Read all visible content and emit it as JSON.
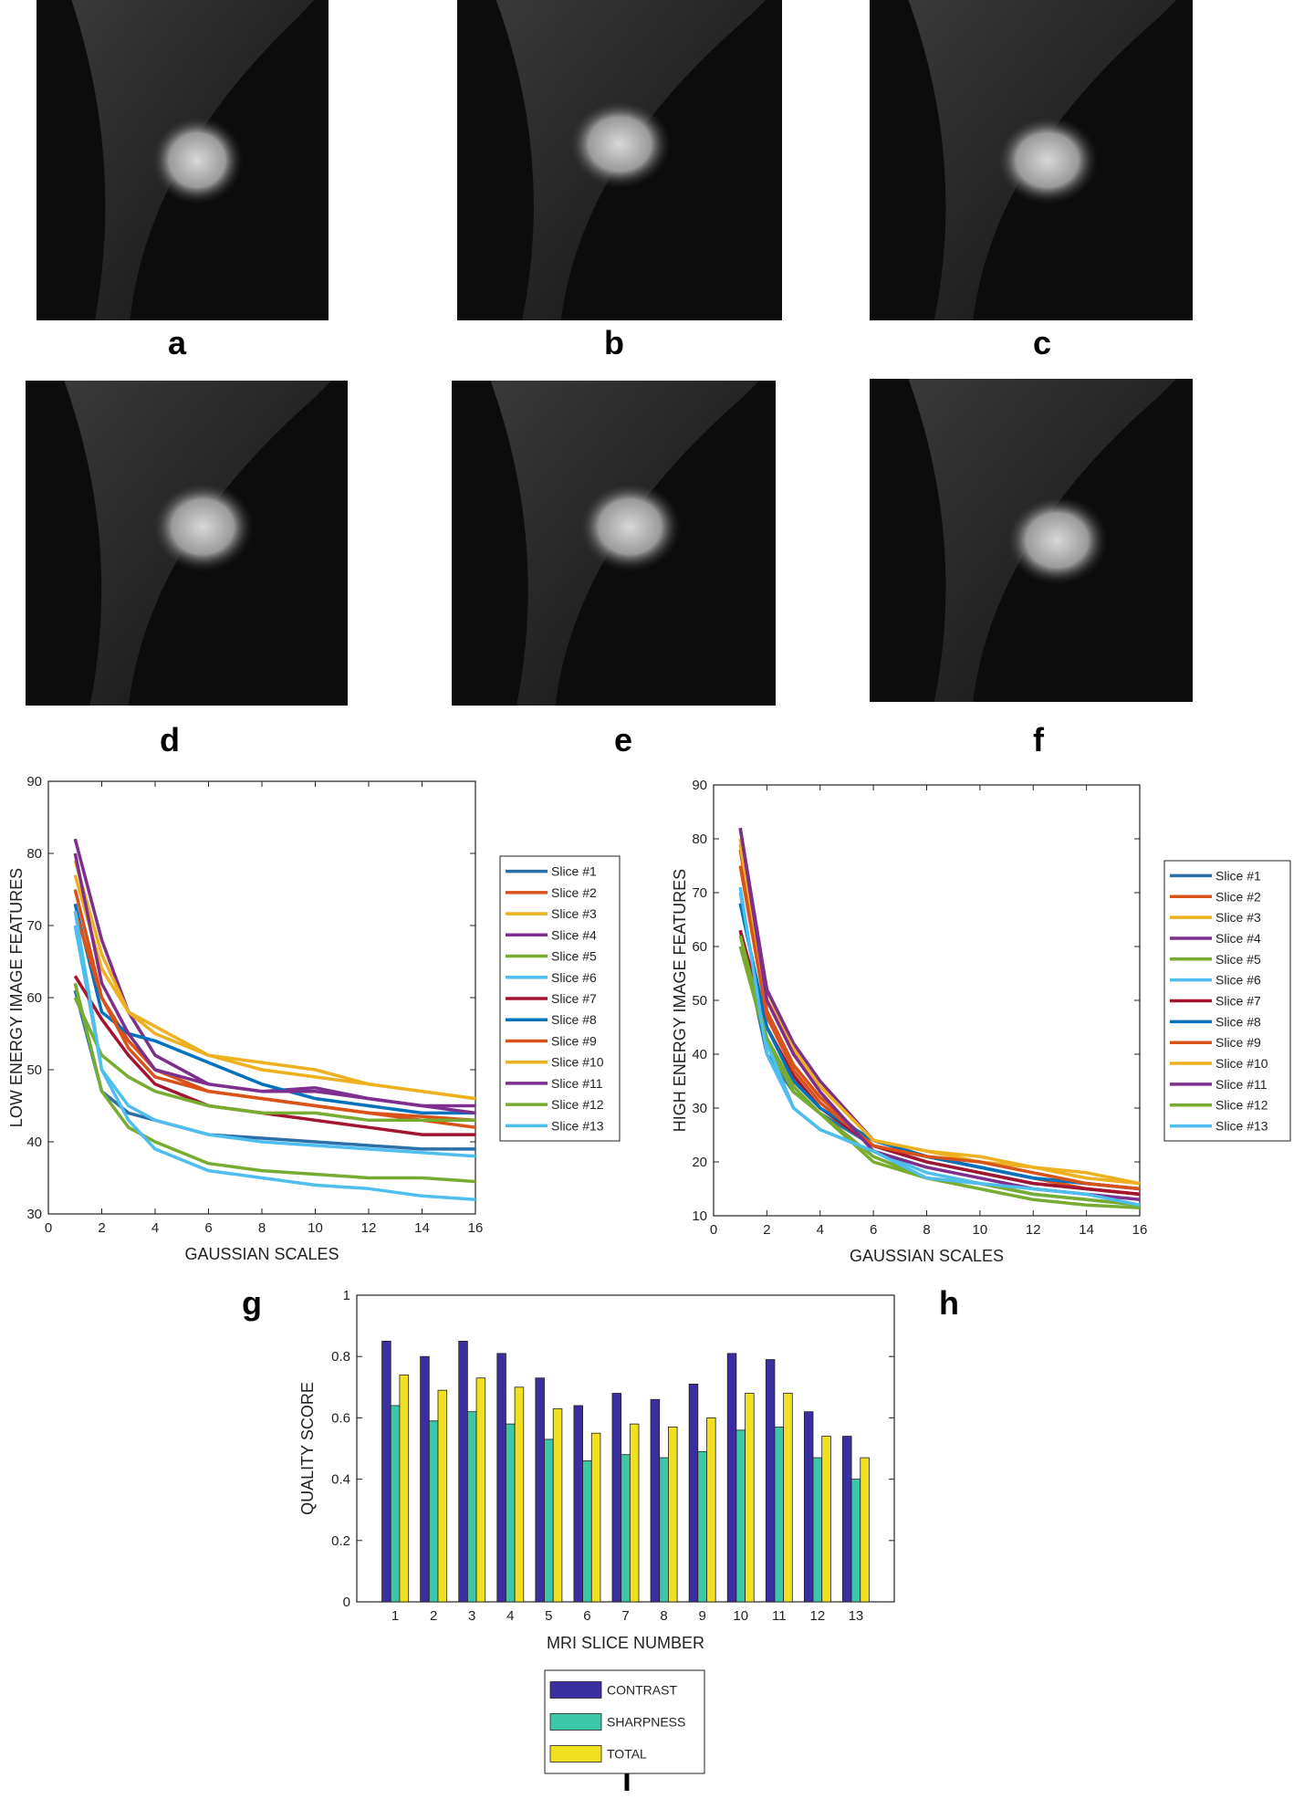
{
  "panels": [
    {
      "label": "a"
    },
    {
      "label": "b"
    },
    {
      "label": "c"
    },
    {
      "label": "d"
    },
    {
      "label": "e"
    },
    {
      "label": "f"
    }
  ],
  "chart_data": [
    {
      "type": "line",
      "label": "g",
      "xlabel": "GAUSSIAN SCALES",
      "ylabel": "LOW ENERGY IMAGE FEATURES",
      "x": [
        1,
        2,
        3,
        4,
        6,
        8,
        10,
        12,
        14,
        16
      ],
      "xlim": [
        0,
        16
      ],
      "xticks": [
        0,
        2,
        4,
        6,
        8,
        10,
        12,
        14,
        16
      ],
      "ylim": [
        30,
        90
      ],
      "yticks": [
        30,
        40,
        50,
        60,
        70,
        80,
        90
      ],
      "series": [
        {
          "name": "Slice #1",
          "color": "#2a6fa8",
          "values": [
            61,
            47,
            44,
            43,
            41,
            40.5,
            40,
            39.5,
            39,
            39
          ]
        },
        {
          "name": "Slice #2",
          "color": "#d95319",
          "values": [
            75,
            60,
            54,
            50,
            47,
            46,
            45,
            44,
            43.5,
            43
          ]
        },
        {
          "name": "Slice #3",
          "color": "#edb120",
          "values": [
            77,
            64,
            58,
            56,
            52,
            50,
            49,
            48,
            47,
            46
          ]
        },
        {
          "name": "Slice #4",
          "color": "#7e2f8e",
          "values": [
            82,
            68,
            58,
            52,
            48,
            47,
            47.5,
            46,
            45,
            45
          ]
        },
        {
          "name": "Slice #5",
          "color": "#77ac30",
          "values": [
            62,
            47,
            42,
            40,
            37,
            36,
            35.5,
            35,
            35,
            34.5
          ]
        },
        {
          "name": "Slice #6",
          "color": "#4dbeee",
          "values": [
            70,
            50,
            43,
            39,
            36,
            35,
            34,
            33.5,
            32.5,
            32
          ]
        },
        {
          "name": "Slice #7",
          "color": "#a2142f",
          "values": [
            63,
            57,
            52,
            48,
            45,
            44,
            43,
            42,
            41,
            41
          ]
        },
        {
          "name": "Slice #8",
          "color": "#0072bd",
          "values": [
            73,
            58,
            55,
            54,
            51,
            48,
            46,
            45,
            44,
            44
          ]
        },
        {
          "name": "Slice #9",
          "color": "#d95319",
          "values": [
            72,
            60,
            53,
            49,
            47,
            46,
            45,
            44,
            43,
            42
          ]
        },
        {
          "name": "Slice #10",
          "color": "#edb120",
          "values": [
            79,
            66,
            58,
            55,
            52,
            51,
            50,
            48,
            47,
            46
          ]
        },
        {
          "name": "Slice #11",
          "color": "#7e2f8e",
          "values": [
            80,
            62,
            55,
            50,
            48,
            47,
            47,
            46,
            45,
            44
          ]
        },
        {
          "name": "Slice #12",
          "color": "#77ac30",
          "values": [
            60,
            52,
            49,
            47,
            45,
            44,
            44,
            43,
            43,
            43
          ]
        },
        {
          "name": "Slice #13",
          "color": "#4dbeee",
          "values": [
            72,
            50,
            45,
            43,
            41,
            40,
            39.5,
            39,
            38.5,
            38
          ]
        }
      ]
    },
    {
      "type": "line",
      "label": "h",
      "xlabel": "GAUSSIAN SCALES",
      "ylabel": "HIGH ENERGY IMAGE FEATURES",
      "x": [
        1,
        2,
        3,
        4,
        6,
        8,
        10,
        12,
        14,
        16
      ],
      "xlim": [
        0,
        16
      ],
      "xticks": [
        0,
        2,
        4,
        6,
        8,
        10,
        12,
        14,
        16
      ],
      "ylim": [
        10,
        90
      ],
      "yticks": [
        10,
        20,
        30,
        40,
        50,
        60,
        70,
        80,
        90
      ],
      "series": [
        {
          "name": "Slice #1",
          "color": "#2a6fa8",
          "values": [
            63,
            40,
            33,
            29,
            23,
            20,
            18,
            16,
            15,
            14
          ]
        },
        {
          "name": "Slice #2",
          "color": "#d95319",
          "values": [
            78,
            48,
            38,
            32,
            23,
            21,
            19,
            17,
            15,
            14
          ]
        },
        {
          "name": "Slice #3",
          "color": "#edb120",
          "values": [
            80,
            52,
            40,
            34,
            24,
            22,
            20,
            19,
            17,
            16
          ]
        },
        {
          "name": "Slice #4",
          "color": "#7e2f8e",
          "values": [
            82,
            52,
            42,
            35,
            24,
            21,
            19,
            17,
            16,
            15
          ]
        },
        {
          "name": "Slice #5",
          "color": "#77ac30",
          "values": [
            60,
            42,
            33,
            29,
            20,
            17,
            15,
            13,
            12,
            11.5
          ]
        },
        {
          "name": "Slice #6",
          "color": "#4dbeee",
          "values": [
            70,
            42,
            30,
            26,
            22,
            18,
            16,
            14,
            13,
            12
          ]
        },
        {
          "name": "Slice #7",
          "color": "#a2142f",
          "values": [
            63,
            45,
            36,
            30,
            23,
            20,
            18,
            16,
            15,
            14
          ]
        },
        {
          "name": "Slice #8",
          "color": "#0072bd",
          "values": [
            68,
            45,
            35,
            30,
            24,
            21,
            19,
            17,
            16,
            15
          ]
        },
        {
          "name": "Slice #9",
          "color": "#d95319",
          "values": [
            75,
            47,
            37,
            31,
            23,
            21,
            20,
            18,
            16,
            15
          ]
        },
        {
          "name": "Slice #10",
          "color": "#edb120",
          "values": [
            79,
            50,
            41,
            34,
            24,
            22,
            21,
            19,
            18,
            16
          ]
        },
        {
          "name": "Slice #11",
          "color": "#7e2f8e",
          "values": [
            82,
            50,
            40,
            33,
            22,
            19,
            17,
            15,
            14,
            13
          ]
        },
        {
          "name": "Slice #12",
          "color": "#77ac30",
          "values": [
            62,
            43,
            34,
            29,
            21,
            17,
            16,
            14,
            13,
            12
          ]
        },
        {
          "name": "Slice #13",
          "color": "#4dbeee",
          "values": [
            71,
            40,
            30,
            26,
            22,
            17,
            16,
            15,
            14,
            12
          ]
        }
      ]
    },
    {
      "type": "bar",
      "label": "i",
      "xlabel": "MRI SLICE NUMBER",
      "ylabel": "QUALITY SCORE",
      "categories": [
        "1",
        "2",
        "3",
        "4",
        "5",
        "6",
        "7",
        "8",
        "9",
        "10",
        "11",
        "12",
        "13"
      ],
      "ylim": [
        0,
        1
      ],
      "yticks": [
        0,
        0.2,
        0.4,
        0.6,
        0.8,
        1
      ],
      "series": [
        {
          "name": "CONTRAST",
          "color": "#3a2ea0",
          "values": [
            0.85,
            0.8,
            0.85,
            0.81,
            0.73,
            0.64,
            0.68,
            0.66,
            0.71,
            0.81,
            0.79,
            0.62,
            0.54
          ]
        },
        {
          "name": "SHARPNESS",
          "color": "#3cc8a8",
          "values": [
            0.64,
            0.59,
            0.62,
            0.58,
            0.53,
            0.46,
            0.48,
            0.47,
            0.49,
            0.56,
            0.57,
            0.47,
            0.4
          ]
        },
        {
          "name": "TOTAL",
          "color": "#f0e020",
          "values": [
            0.74,
            0.69,
            0.73,
            0.7,
            0.63,
            0.55,
            0.58,
            0.57,
            0.6,
            0.68,
            0.68,
            0.54,
            0.47
          ]
        }
      ]
    }
  ]
}
